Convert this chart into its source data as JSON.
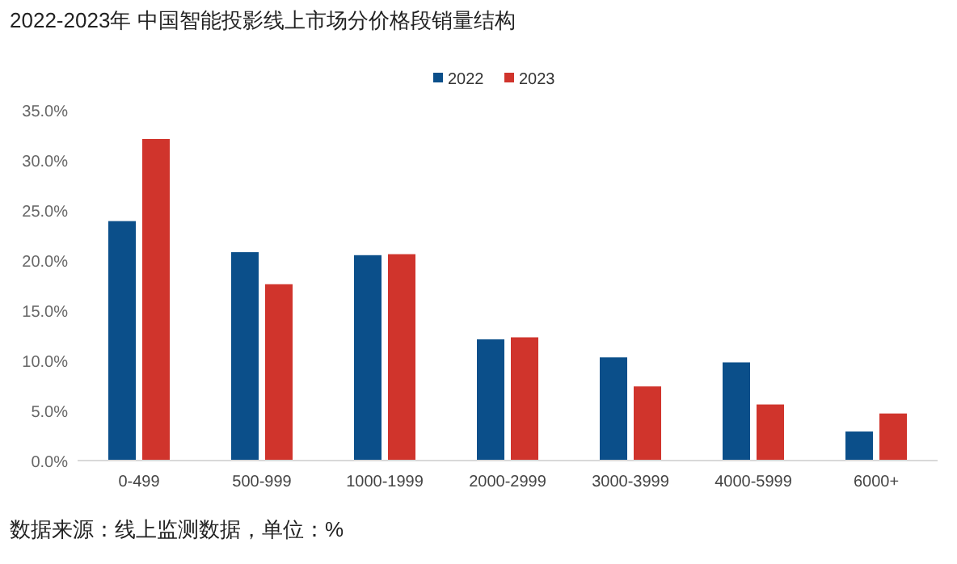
{
  "chart_data": {
    "type": "bar",
    "title": "2022-2023年 中国智能投影线上市场分价格段销量结构",
    "categories": [
      "0-499",
      "500-999",
      "1000-1999",
      "2000-2999",
      "3000-3999",
      "4000-5999",
      "6000+"
    ],
    "series": [
      {
        "name": "2022",
        "color": "#0b4f8a",
        "values": [
          23.9,
          20.8,
          20.5,
          12.1,
          10.3,
          9.8,
          2.9
        ]
      },
      {
        "name": "2023",
        "color": "#d0342c",
        "values": [
          32.1,
          17.6,
          20.6,
          12.3,
          7.4,
          5.6,
          4.7
        ]
      }
    ],
    "ylim": [
      0,
      35
    ],
    "yticks": [
      {
        "value": 0,
        "label": "0.0%"
      },
      {
        "value": 5,
        "label": "5.0%"
      },
      {
        "value": 10,
        "label": "10.0%"
      },
      {
        "value": 15,
        "label": "15.0%"
      },
      {
        "value": 20,
        "label": "20.0%"
      },
      {
        "value": 25,
        "label": "25.0%"
      },
      {
        "value": 30,
        "label": "30.0%"
      },
      {
        "value": 35,
        "label": "35.0%"
      }
    ],
    "grid": false,
    "legend": "top",
    "annotations": [
      "数据来源：线上监测数据，单位：%"
    ]
  }
}
